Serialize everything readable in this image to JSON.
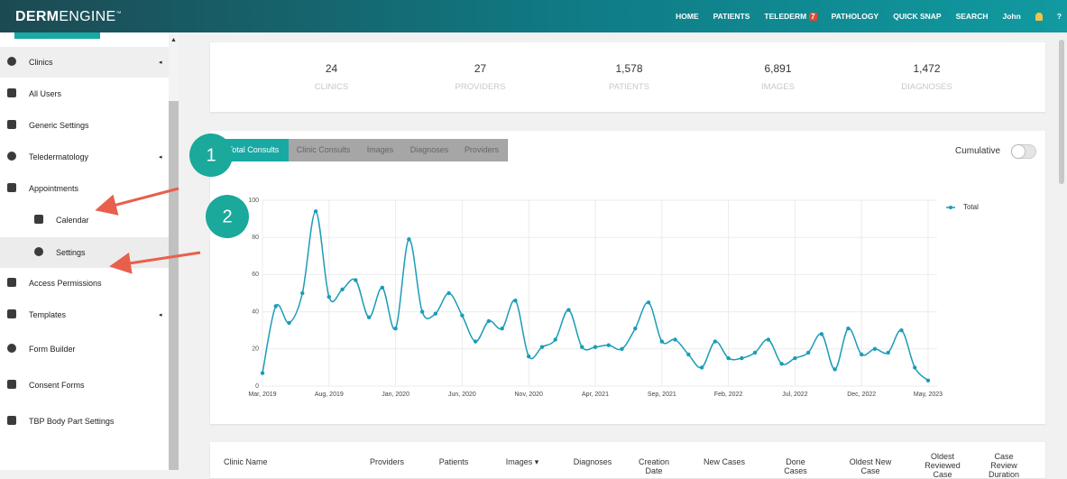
{
  "nav": {
    "brand_bold": "DERM",
    "brand_light": "ENGINE",
    "items": [
      "HOME",
      "PATIENTS",
      "TELEDERM",
      "PATHOLOGY",
      "QUICK SNAP",
      "SEARCH",
      "John"
    ],
    "badge": "7",
    "help": "?"
  },
  "sidebar": {
    "items": [
      "Clinics",
      "All Users",
      "Generic Settings",
      "Teledermatology",
      "Appointments",
      "Calendar",
      "Settings",
      "Access Permissions",
      "Templates",
      "Form Builder",
      "Consent Forms",
      "TBP Body Part Settings"
    ]
  },
  "stats": [
    {
      "value": "24",
      "label": "CLINICS"
    },
    {
      "value": "27",
      "label": "PROVIDERS"
    },
    {
      "value": "1,578",
      "label": "PATIENTS"
    },
    {
      "value": "6,891",
      "label": "IMAGES"
    },
    {
      "value": "1,472",
      "label": "DIAGNOSES"
    }
  ],
  "tabs": [
    "Total Consults",
    "Clinic Consults",
    "Images",
    "Diagnoses",
    "Providers"
  ],
  "toggle_label": "Cumulative",
  "annotations": [
    "1",
    "2"
  ],
  "chart_data": {
    "type": "line",
    "categories": [
      "Mar, 2019",
      null,
      null,
      null,
      null,
      "Aug, 2019",
      null,
      null,
      null,
      null,
      "Jan, 2020",
      null,
      null,
      null,
      null,
      "Jun, 2020",
      null,
      null,
      null,
      null,
      "Nov, 2020",
      null,
      null,
      null,
      null,
      "Apr, 2021",
      null,
      null,
      null,
      null,
      "Sep, 2021",
      null,
      null,
      null,
      null,
      "Feb, 2022",
      null,
      null,
      null,
      null,
      "Jul, 2022",
      null,
      null,
      null,
      null,
      "Dec, 2022",
      null,
      null,
      null,
      null,
      "May, 2023"
    ],
    "series": [
      {
        "name": "Total",
        "color": "#1a9cb8",
        "values": [
          7,
          43,
          34,
          50,
          94,
          48,
          52,
          57,
          37,
          53,
          31,
          79,
          40,
          39,
          50,
          38,
          24,
          35,
          31,
          46,
          16,
          21,
          25,
          41,
          21,
          21,
          22,
          20,
          31,
          45,
          24,
          25,
          17,
          10,
          24,
          15,
          15,
          18,
          25,
          12,
          15,
          18,
          28,
          9,
          31,
          17,
          20,
          18,
          30,
          10,
          3
        ]
      }
    ],
    "ylim": [
      0,
      100
    ],
    "yticks": [
      0,
      20,
      40,
      60,
      80,
      100
    ],
    "grid": true,
    "legend": "top-right"
  },
  "table": {
    "headers": [
      "Clinic Name",
      "Providers",
      "Patients",
      "Images ▾",
      "Diagnoses",
      "Creation Date",
      "New Cases",
      "Done Cases",
      "Oldest New Case",
      "Oldest Reviewed Case",
      "Case Review Duration"
    ]
  }
}
